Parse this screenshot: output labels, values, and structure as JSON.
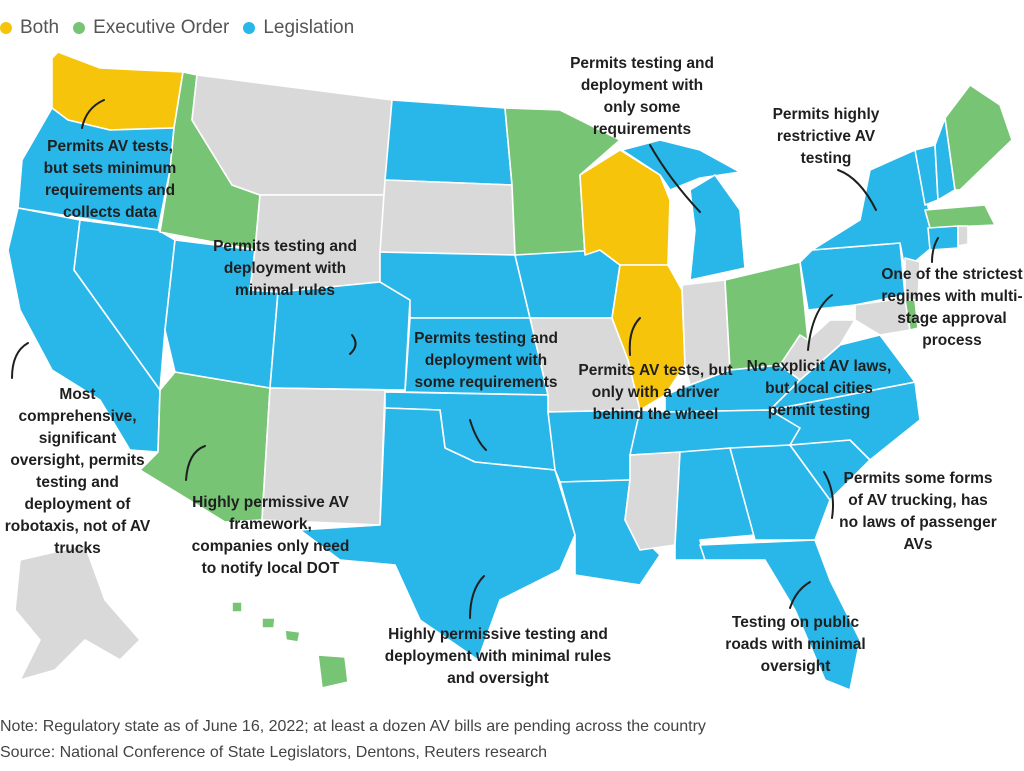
{
  "colors": {
    "both": "#f6c40b",
    "executive": "#76c474",
    "legislation": "#29b6e8",
    "none": "#d9d9d9",
    "border": "#ffffff"
  },
  "legend": [
    {
      "label": "Both",
      "color": "#f6c40b"
    },
    {
      "label": "Executive Order",
      "color": "#76c474"
    },
    {
      "label": "Legislation",
      "color": "#29b6e8"
    }
  ],
  "annotations": {
    "washington": "Permits AV tests, but sets minimum requirements and collects data",
    "utah": "Permits testing and deployment with minimal rules",
    "california": "Most comprehensive, significant oversight, permits testing and deployment of robotaxis, not of AV trucks",
    "arizona": "Highly permissive AV framework, companies only need to notify local DOT",
    "texas": "Highly permissive testing and deployment with minimal rules and oversight",
    "oklahoma": "Permits testing and deployment with some requirements",
    "michigan": "Permits testing and deployment with only some requirements",
    "illinois": "Permits AV tests, but only with a driver behind the wheel",
    "new_york": "Permits highly restrictive AV testing",
    "connecticut": "One of the strictest regimes with multi-stage approval process",
    "virginia": "No explicit AV laws, but local cities permit testing",
    "south_carolina": "Permits some forms of AV trucking, has no laws of passenger AVs",
    "florida": "Testing on public roads with minimal oversight"
  },
  "note": "Note: Regulatory state as of June 16, 2022; at least a dozen AV bills are pending across the country",
  "source": "Source: National Conference of State Legislators, Dentons, Reuters research"
}
